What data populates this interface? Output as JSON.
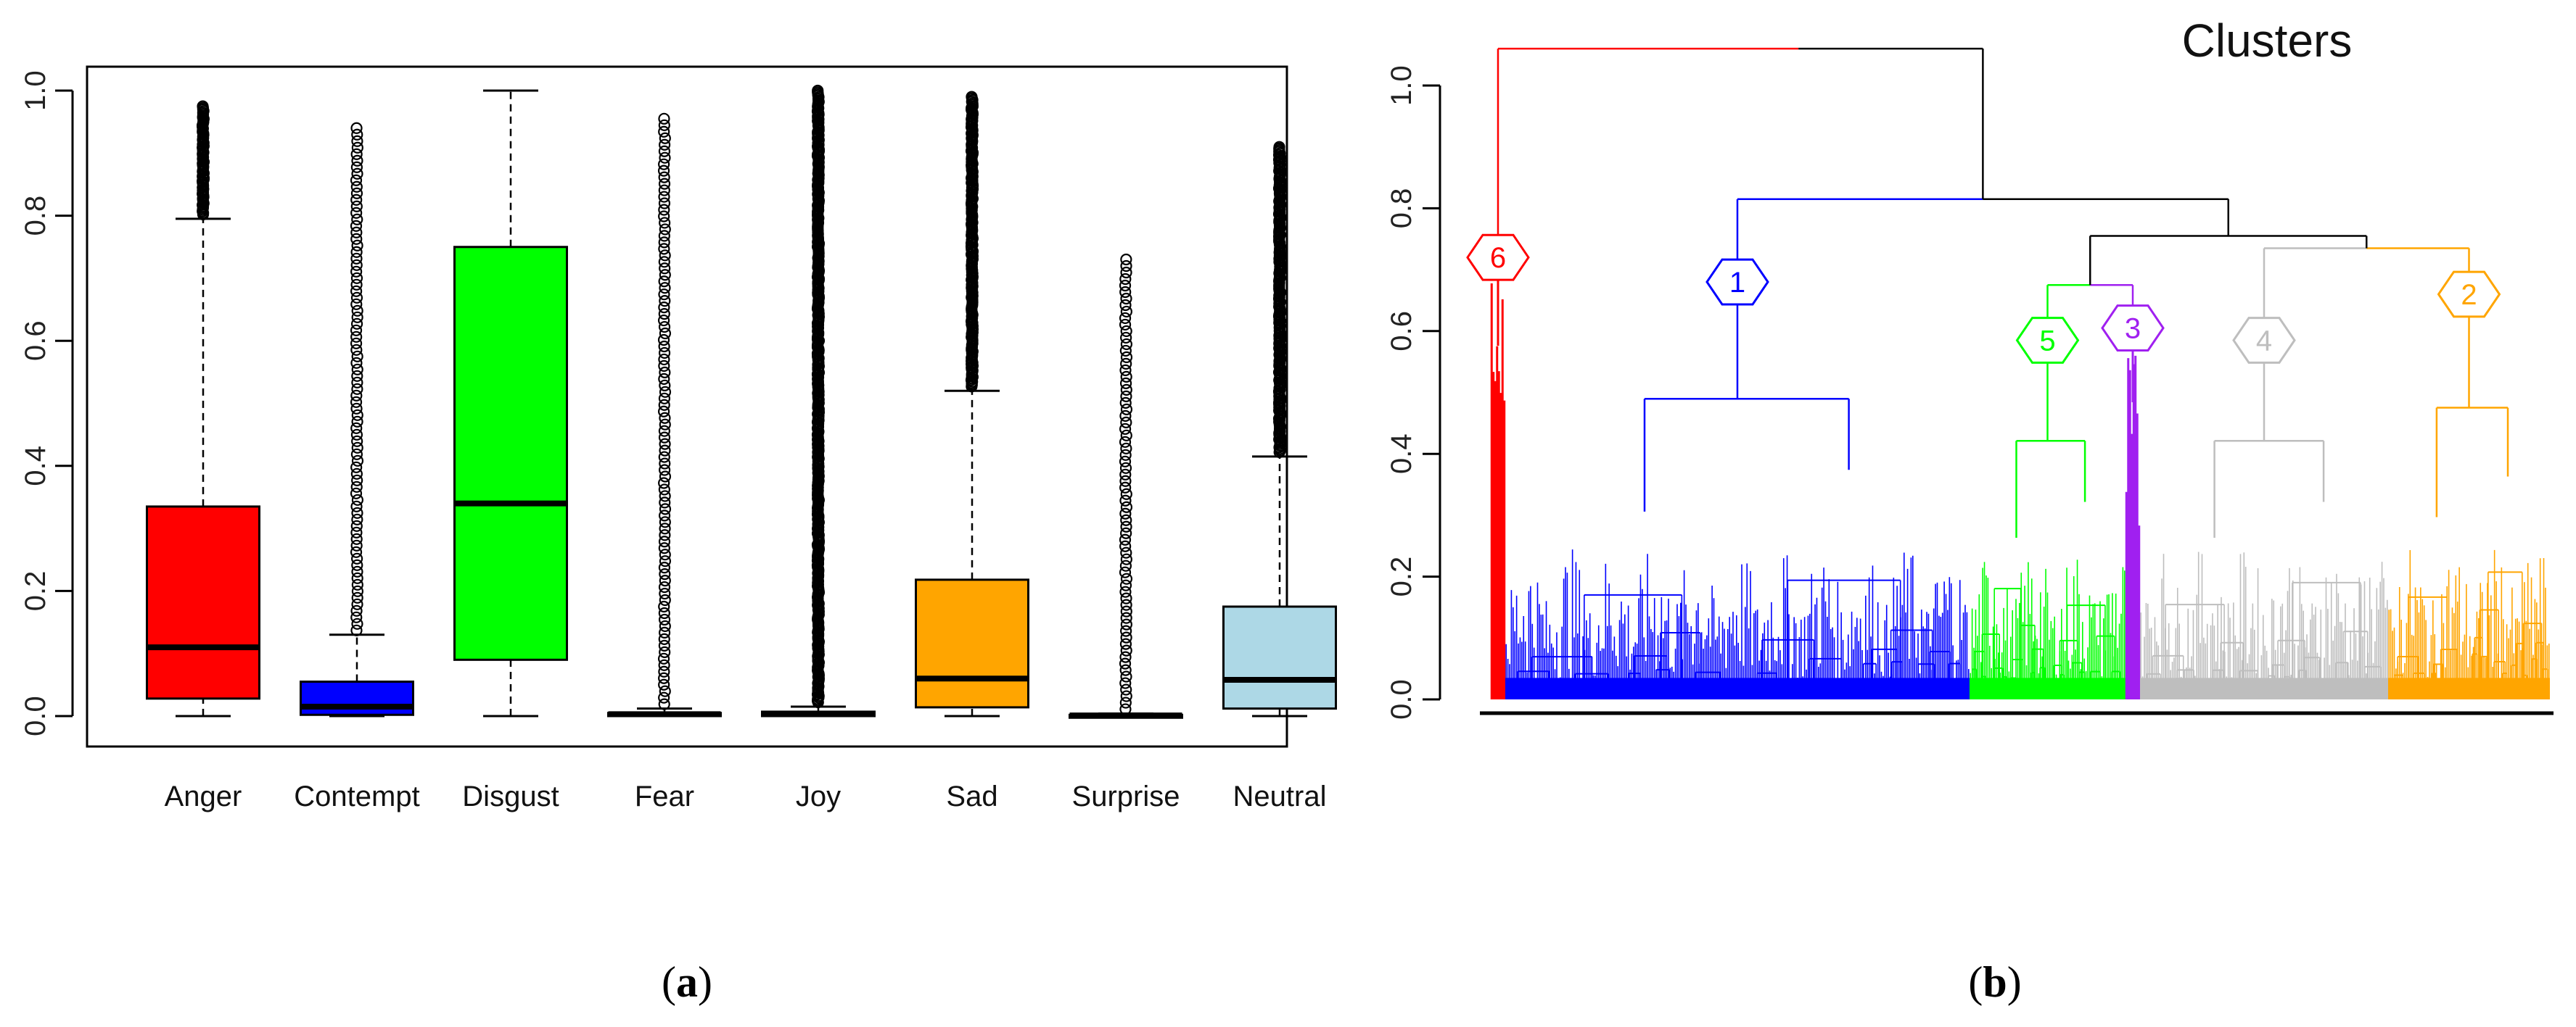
{
  "chart_data": [
    {
      "type": "box",
      "panel_caption_letter": "a",
      "categories": [
        "Anger",
        "Contempt",
        "Disgust",
        "Fear",
        "Joy",
        "Sad",
        "Surprise",
        "Neutral"
      ],
      "colors": [
        "#ff0000",
        "#0000ff",
        "#00ff00",
        "#111111",
        "#111111",
        "#ffa500",
        "#111111",
        "#add8e6"
      ],
      "boxes": [
        {
          "name": "Anger",
          "whisker_low": 0.0,
          "q1": 0.028,
          "median": 0.11,
          "q3": 0.335,
          "whisker_high": 0.795,
          "outlier_max": 0.975
        },
        {
          "name": "Contempt",
          "whisker_low": 0.0,
          "q1": 0.002,
          "median": 0.015,
          "q3": 0.055,
          "whisker_high": 0.13,
          "outlier_max": 0.94
        },
        {
          "name": "Disgust",
          "whisker_low": 0.0,
          "q1": 0.09,
          "median": 0.34,
          "q3": 0.75,
          "whisker_high": 1.0,
          "outlier_max": null
        },
        {
          "name": "Fear",
          "whisker_low": 0.0,
          "q1": 0.0,
          "median": 0.003,
          "q3": 0.005,
          "whisker_high": 0.012,
          "outlier_max": 0.955
        },
        {
          "name": "Joy",
          "whisker_low": 0.0,
          "q1": 0.0,
          "median": 0.003,
          "q3": 0.007,
          "whisker_high": 0.015,
          "outlier_max": 1.0
        },
        {
          "name": "Sad",
          "whisker_low": 0.0,
          "q1": 0.014,
          "median": 0.06,
          "q3": 0.218,
          "whisker_high": 0.52,
          "outlier_max": 0.99
        },
        {
          "name": "Surprise",
          "whisker_low": 0.0,
          "q1": 0.0,
          "median": 0.001,
          "q3": 0.002,
          "whisker_high": 0.004,
          "outlier_max": 0.73
        },
        {
          "name": "Neutral",
          "whisker_low": 0.0,
          "q1": 0.012,
          "median": 0.058,
          "q3": 0.175,
          "whisker_high": 0.415,
          "outlier_max": 0.91
        }
      ],
      "yticks": [
        "0.0",
        "0.2",
        "0.4",
        "0.6",
        "0.8",
        "1.0"
      ],
      "ylim": [
        0,
        1.0
      ],
      "title": "",
      "xlabel": "",
      "ylabel": ""
    },
    {
      "type": "dendrogram",
      "panel_caption_letter": "b",
      "title": "Clusters",
      "yticks": [
        "0.0",
        "0.2",
        "0.4",
        "0.6",
        "0.8",
        "1.0"
      ],
      "ylim": [
        0,
        1.0
      ],
      "clusters": [
        {
          "label": "6",
          "color": "#ff0000",
          "node_height": 0.72,
          "merge_height": 1.06
        },
        {
          "label": "1",
          "color": "#0000ff",
          "node_height": 0.68,
          "merge_height": 0.815
        },
        {
          "label": "5",
          "color": "#00ff00",
          "node_height": 0.585,
          "merge_height": 0.675
        },
        {
          "label": "3",
          "color": "#a020f0",
          "node_height": 0.605,
          "merge_height": 0.675
        },
        {
          "label": "4",
          "color": "#bebebe",
          "node_height": 0.585,
          "merge_height": 0.735
        },
        {
          "label": "2",
          "color": "#ffa500",
          "node_height": 0.66,
          "merge_height": 0.735
        }
      ],
      "internal_merges": [
        0.675,
        0.735,
        0.755,
        0.815,
        1.06
      ]
    }
  ]
}
